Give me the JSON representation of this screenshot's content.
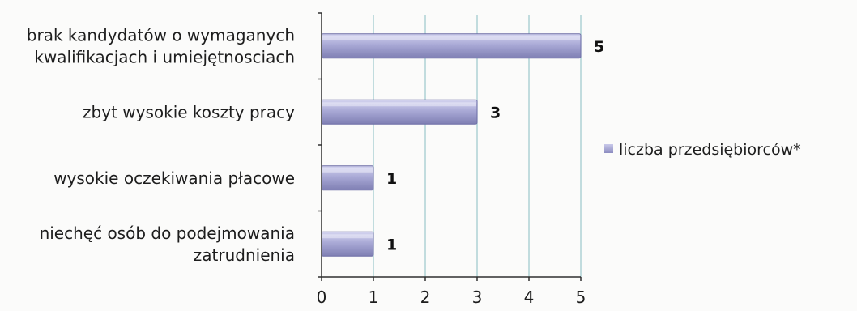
{
  "chart_data": {
    "type": "bar",
    "orientation": "horizontal",
    "categories": [
      [
        "brak kandydatów o wymaganych",
        "kwalifikacjach i umiejętnosciach"
      ],
      [
        "zbyt wysokie koszty pracy"
      ],
      [
        "wysokie oczekiwania płacowe"
      ],
      [
        "niechęć osób do podejmowania",
        "zatrudnienia"
      ]
    ],
    "series": [
      {
        "name": "liczba przedsiębiorców*",
        "values": [
          5,
          3,
          1,
          1
        ]
      }
    ],
    "xticks": [
      "0",
      "1",
      "2",
      "3",
      "4",
      "5"
    ],
    "xlim": [
      0,
      5
    ],
    "grid": true,
    "legend": "right",
    "colors": {
      "bar": "#a9a9d6",
      "bar_dark": "#7f7fb3",
      "grid": "#9bc7cc",
      "axis": "#2f2f2f"
    }
  }
}
